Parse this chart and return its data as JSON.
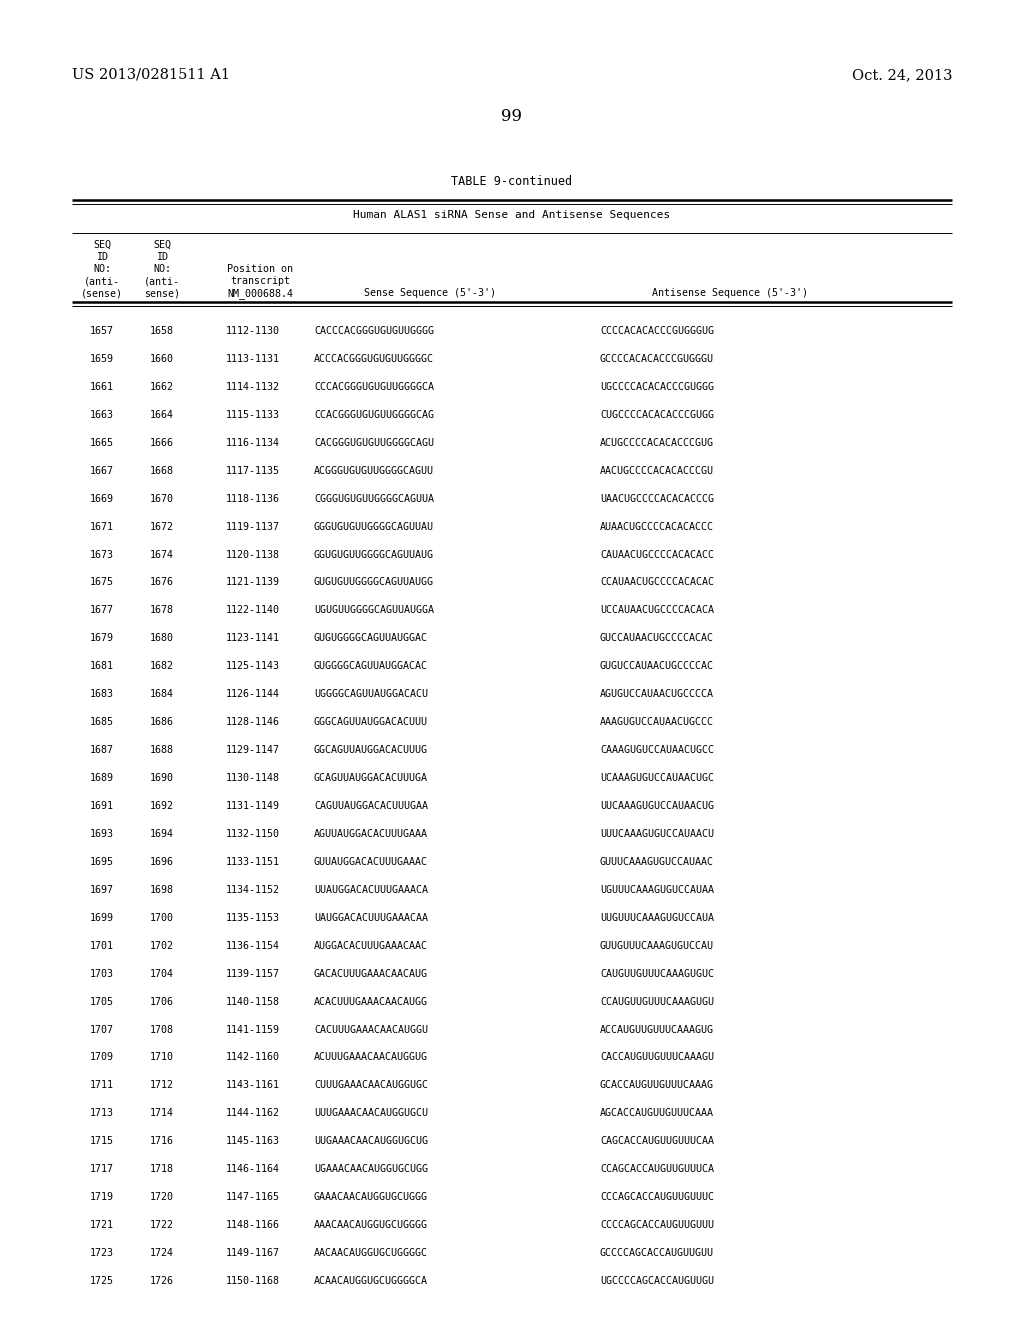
{
  "header_left": "US 2013/0281511 A1",
  "header_right": "Oct. 24, 2013",
  "page_number": "99",
  "table_title": "TABLE 9-continued",
  "table_subtitle": "Human ALAS1 siRNA Sense and Antisense Sequences",
  "rows": [
    [
      "1657",
      "1658",
      "1112-1130",
      "CACCCACGGGUGUGUUGGGG",
      "CCCCACACACCCGUGGGUG"
    ],
    [
      "1659",
      "1660",
      "1113-1131",
      "ACCCACGGGUGUGUUGGGGC",
      "GCCCCACACACCCGUGGGU"
    ],
    [
      "1661",
      "1662",
      "1114-1132",
      "CCCACGGGUGUGUUGGGGCA",
      "UGCCCCACACACCCGUGGG"
    ],
    [
      "1663",
      "1664",
      "1115-1133",
      "CCACGGGUGUGUUGGGGCAG",
      "CUGCCCCACACACCCGUGG"
    ],
    [
      "1665",
      "1666",
      "1116-1134",
      "CACGGGUGUGUUGGGGCAGU",
      "ACUGCCCCACACACCCGUG"
    ],
    [
      "1667",
      "1668",
      "1117-1135",
      "ACGGGUGUGUUGGGGCAGUU",
      "AACUGCCCCACACACCCGU"
    ],
    [
      "1669",
      "1670",
      "1118-1136",
      "CGGGUGUGUUGGGGCAGUUA",
      "UAACUGCCCCACACACCCG"
    ],
    [
      "1671",
      "1672",
      "1119-1137",
      "GGGUGUGUUGGGGCAGUUAU",
      "AUAACUGCCCCACACACCC"
    ],
    [
      "1673",
      "1674",
      "1120-1138",
      "GGUGUGUUGGGGCAGUUAUG",
      "CAUAACUGCCCCACACACC"
    ],
    [
      "1675",
      "1676",
      "1121-1139",
      "GUGUGUUGGGGCAGUUAUGG",
      "CCAUAACUGCCCCACACAC"
    ],
    [
      "1677",
      "1678",
      "1122-1140",
      "UGUGUUGGGGCAGUUAUGGA",
      "UCCAUAACUGCCCCACACA"
    ],
    [
      "1679",
      "1680",
      "1123-1141",
      "GUGUGGGGCAGUUAUGGAC",
      "GUCCAUAACUGCCCCACAC"
    ],
    [
      "1681",
      "1682",
      "1125-1143",
      "GUGGGGCAGUUAUGGACAC",
      "GUGUCCAUAACUGCCCCAC"
    ],
    [
      "1683",
      "1684",
      "1126-1144",
      "UGGGGCAGUUAUGGACACU",
      "AGUGUCCAUAACUGCCCCA"
    ],
    [
      "1685",
      "1686",
      "1128-1146",
      "GGGCAGUUAUGGACACUUU",
      "AAAGUGUCCAUAACUGCCC"
    ],
    [
      "1687",
      "1688",
      "1129-1147",
      "GGCAGUUAUGGACACUUUG",
      "CAAAGUGUCCAUAACUGCC"
    ],
    [
      "1689",
      "1690",
      "1130-1148",
      "GCAGUUAUGGACACUUUGA",
      "UCAAAGUGUCCAUAACUGC"
    ],
    [
      "1691",
      "1692",
      "1131-1149",
      "CAGUUAUGGACACUUUGAA",
      "UUCAAAGUGUCCAUAACUG"
    ],
    [
      "1693",
      "1694",
      "1132-1150",
      "AGUUAUGGACACUUUGAAA",
      "UUUCAAAGUGUCCAUAACU"
    ],
    [
      "1695",
      "1696",
      "1133-1151",
      "GUUAUGGACACUUUGAAAC",
      "GUUUCAAAGUGUCCAUAAC"
    ],
    [
      "1697",
      "1698",
      "1134-1152",
      "UUAUGGACACUUUGAAACA",
      "UGUUUCAAAGUGUCCAUAA"
    ],
    [
      "1699",
      "1700",
      "1135-1153",
      "UAUGGACACUUUGAAACAA",
      "UUGUUUCAAAGUGUCCAUA"
    ],
    [
      "1701",
      "1702",
      "1136-1154",
      "AUGGACACUUUGAAACAAC",
      "GUUGUUUCAAAGUGUCCAU"
    ],
    [
      "1703",
      "1704",
      "1139-1157",
      "GACACUUUGAAACAACAUG",
      "CAUGUUGUUUCAAAGUGUC"
    ],
    [
      "1705",
      "1706",
      "1140-1158",
      "ACACUUUGAAACAACAUGG",
      "CCAUGUUGUUUCAAAGUGU"
    ],
    [
      "1707",
      "1708",
      "1141-1159",
      "CACUUUGAAACAACAUGGU",
      "ACCAUGUUGUUUCAAAGUG"
    ],
    [
      "1709",
      "1710",
      "1142-1160",
      "ACUUUGAAACAACAUGGUG",
      "CACCAUGUUGUUUCAAAGU"
    ],
    [
      "1711",
      "1712",
      "1143-1161",
      "CUUUGAAACAACAUGGUGC",
      "GCACCAUGUUGUUUCAAAG"
    ],
    [
      "1713",
      "1714",
      "1144-1162",
      "UUUGAAACAACAUGGUGCU",
      "AGCACCAUGUUGUUUCAAA"
    ],
    [
      "1715",
      "1716",
      "1145-1163",
      "UUGAAACAACAUGGUGCUG",
      "CAGCACCAUGUUGUUUCAA"
    ],
    [
      "1717",
      "1718",
      "1146-1164",
      "UGAAACAACAUGGUGCUGG",
      "CCAGCACCAUGUUGUUUCA"
    ],
    [
      "1719",
      "1720",
      "1147-1165",
      "GAAACAACAUGGUGCUGGG",
      "CCCAGCACCAUGUUGUUUC"
    ],
    [
      "1721",
      "1722",
      "1148-1166",
      "AAACAACAUGGUGCUGGGG",
      "CCCCAGCACCAUGUUGUUU"
    ],
    [
      "1723",
      "1724",
      "1149-1167",
      "AACAACAUGGUGCUGGGGC",
      "GCCCCAGCACCAUGUUGUU"
    ],
    [
      "1725",
      "1726",
      "1150-1168",
      "ACAACAUGGUGCUGGGGCA",
      "UGCCCCAGCACCAUGUUGU"
    ]
  ],
  "bg_color": "#ffffff",
  "mono_font": "DejaVu Sans Mono",
  "serif_font": "DejaVu Serif"
}
